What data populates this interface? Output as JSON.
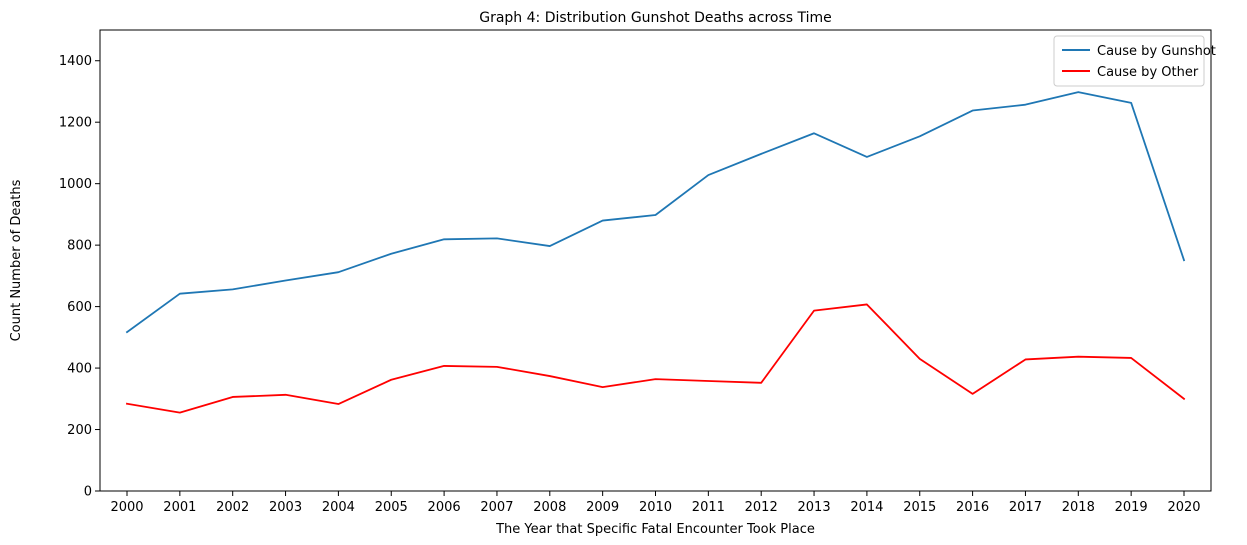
{
  "chart_data": {
    "type": "line",
    "title": "Graph 4: Distribution Gunshot Deaths across Time",
    "xlabel": "The Year that Specific Fatal Encounter Took Place",
    "ylabel": "Count Number of Deaths",
    "x": [
      "2000",
      "2001",
      "2002",
      "2003",
      "2004",
      "2005",
      "2006",
      "2007",
      "2008",
      "2009",
      "2010",
      "2011",
      "2012",
      "2013",
      "2014",
      "2015",
      "2016",
      "2017",
      "2018",
      "2019",
      "2020"
    ],
    "yticks": [
      "0",
      "200",
      "400",
      "600",
      "800",
      "1000",
      "1200",
      "1400"
    ],
    "ylim": [
      0,
      1500
    ],
    "grid": false,
    "legend_position": "top-right",
    "series": [
      {
        "name": "Cause by Gunshot",
        "color": "#1f77b4",
        "values": [
          517,
          642,
          656,
          685,
          712,
          772,
          819,
          822,
          797,
          880,
          898,
          1028,
          1097,
          1164,
          1087,
          1154,
          1238,
          1257,
          1298,
          1263,
          751
        ]
      },
      {
        "name": "Cause by Other",
        "color": "#ff0000",
        "values": [
          284,
          255,
          306,
          313,
          283,
          362,
          407,
          404,
          374,
          338,
          364,
          358,
          352,
          587,
          607,
          430,
          316,
          428,
          437,
          433,
          300
        ]
      }
    ]
  }
}
